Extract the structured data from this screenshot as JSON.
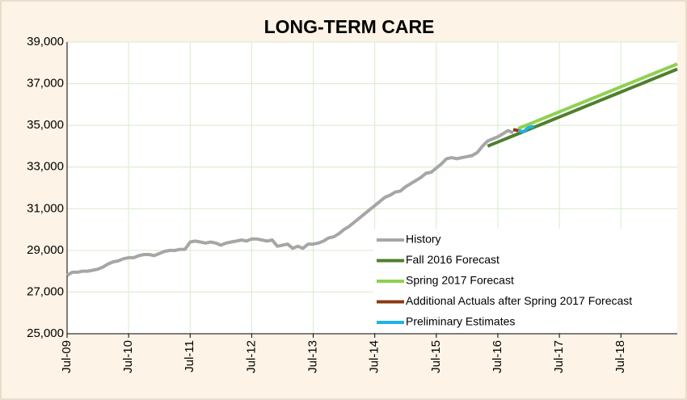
{
  "chart_data": {
    "type": "line",
    "title": "LONG-TERM CARE",
    "categories": [
      "Jul-09",
      null,
      null,
      null,
      null,
      null,
      null,
      null,
      null,
      null,
      null,
      null,
      "Jul-10",
      null,
      null,
      null,
      null,
      null,
      null,
      null,
      null,
      null,
      null,
      null,
      "Jul-11",
      null,
      null,
      null,
      null,
      null,
      null,
      null,
      null,
      null,
      null,
      null,
      "Jul-12",
      null,
      null,
      null,
      null,
      null,
      null,
      null,
      null,
      null,
      null,
      null,
      "Jul-13",
      null,
      null,
      null,
      null,
      null,
      null,
      null,
      null,
      null,
      null,
      null,
      "Jul-14",
      null,
      null,
      null,
      null,
      null,
      null,
      null,
      null,
      null,
      null,
      null,
      "Jul-15",
      null,
      null,
      null,
      null,
      null,
      null,
      null,
      null,
      null,
      null,
      null,
      "Jul-16",
      null,
      null,
      null,
      null,
      null,
      null,
      null,
      null,
      null,
      null,
      null,
      "Jul-17",
      null,
      null,
      null,
      null,
      null,
      null,
      null,
      null,
      null,
      null,
      null,
      "Jul-18",
      null,
      null,
      null,
      null,
      null,
      null,
      null,
      null,
      null,
      null,
      null
    ],
    "series": [
      {
        "name": "History",
        "color": "#a6a6a6",
        "values": [
          27800,
          27950,
          27950,
          28000,
          28000,
          28050,
          28100,
          28200,
          28350,
          28450,
          28500,
          28600,
          28650,
          28650,
          28750,
          28800,
          28800,
          28750,
          28850,
          28950,
          29000,
          29000,
          29050,
          29050,
          29400,
          29450,
          29400,
          29350,
          29400,
          29350,
          29250,
          29350,
          29400,
          29450,
          29500,
          29450,
          29550,
          29550,
          29500,
          29450,
          29500,
          29200,
          29250,
          29300,
          29100,
          29200,
          29100,
          29300,
          29300,
          29350,
          29450,
          29600,
          29650,
          29800,
          30000,
          30150,
          30350,
          30550,
          30750,
          30950,
          31150,
          31350,
          31550,
          31650,
          31800,
          31850,
          32050,
          32200,
          32350,
          32500,
          32700,
          32750,
          32950,
          33150,
          33400,
          33450,
          33400,
          33450,
          33500,
          33550,
          33700,
          34000,
          34250,
          34350,
          34450,
          34600,
          34750,
          34650,
          null,
          null,
          null,
          null,
          null,
          null,
          null,
          null,
          null,
          null,
          null,
          null,
          null,
          null,
          null,
          null,
          null,
          null,
          null,
          null,
          null,
          null,
          null,
          null,
          null,
          null,
          null,
          null,
          null,
          null,
          null,
          null
        ]
      },
      {
        "name": "Fall 2016 Forecast",
        "color": "#4f7f2f",
        "values": [
          null,
          null,
          null,
          null,
          null,
          null,
          null,
          null,
          null,
          null,
          null,
          null,
          null,
          null,
          null,
          null,
          null,
          null,
          null,
          null,
          null,
          null,
          null,
          null,
          null,
          null,
          null,
          null,
          null,
          null,
          null,
          null,
          null,
          null,
          null,
          null,
          null,
          null,
          null,
          null,
          null,
          null,
          null,
          null,
          null,
          null,
          null,
          null,
          null,
          null,
          null,
          null,
          null,
          null,
          null,
          null,
          null,
          null,
          null,
          null,
          null,
          null,
          null,
          null,
          null,
          null,
          null,
          null,
          null,
          null,
          null,
          null,
          null,
          null,
          null,
          null,
          null,
          null,
          null,
          null,
          null,
          null,
          34000,
          34100,
          34200,
          34300,
          34400,
          34500,
          34600,
          34700,
          34800,
          34900,
          35000,
          35100,
          35200,
          35300,
          35400,
          35500,
          35600,
          35700,
          35800,
          35900,
          36000,
          36100,
          36200,
          36300,
          36400,
          36500,
          36600,
          36700,
          36800,
          36900,
          37000,
          37100,
          37200,
          37300,
          37400,
          37500,
          37600,
          37700
        ]
      },
      {
        "name": "Spring 2017 Forecast",
        "color": "#8fd14f",
        "values": [
          null,
          null,
          null,
          null,
          null,
          null,
          null,
          null,
          null,
          null,
          null,
          null,
          null,
          null,
          null,
          null,
          null,
          null,
          null,
          null,
          null,
          null,
          null,
          null,
          null,
          null,
          null,
          null,
          null,
          null,
          null,
          null,
          null,
          null,
          null,
          null,
          null,
          null,
          null,
          null,
          null,
          null,
          null,
          null,
          null,
          null,
          null,
          null,
          null,
          null,
          null,
          null,
          null,
          null,
          null,
          null,
          null,
          null,
          null,
          null,
          null,
          null,
          null,
          null,
          null,
          null,
          null,
          null,
          null,
          null,
          null,
          null,
          null,
          null,
          null,
          null,
          null,
          null,
          null,
          null,
          null,
          null,
          null,
          null,
          null,
          null,
          null,
          null,
          34850,
          34950,
          35050,
          35150,
          35250,
          35350,
          35450,
          35550,
          35650,
          35750,
          35850,
          35950,
          36050,
          36150,
          36250,
          36350,
          36450,
          36550,
          36650,
          36750,
          36850,
          36950,
          37050,
          37150,
          37250,
          37350,
          37450,
          37550,
          37650,
          37750,
          37850,
          37950
        ]
      },
      {
        "name": "Additional Actuals after Spring 2017 Forecast",
        "color": "#8b3a0f",
        "values": [
          null,
          null,
          null,
          null,
          null,
          null,
          null,
          null,
          null,
          null,
          null,
          null,
          null,
          null,
          null,
          null,
          null,
          null,
          null,
          null,
          null,
          null,
          null,
          null,
          null,
          null,
          null,
          null,
          null,
          null,
          null,
          null,
          null,
          null,
          null,
          null,
          null,
          null,
          null,
          null,
          null,
          null,
          null,
          null,
          null,
          null,
          null,
          null,
          null,
          null,
          null,
          null,
          null,
          null,
          null,
          null,
          null,
          null,
          null,
          null,
          null,
          null,
          null,
          null,
          null,
          null,
          null,
          null,
          null,
          null,
          null,
          null,
          null,
          null,
          null,
          null,
          null,
          null,
          null,
          null,
          null,
          null,
          null,
          null,
          null,
          null,
          null,
          34800,
          34750,
          null,
          null,
          null,
          null,
          null,
          null,
          null,
          null,
          null,
          null,
          null,
          null,
          null,
          null,
          null,
          null,
          null,
          null,
          null,
          null,
          null,
          null,
          null,
          null,
          null,
          null,
          null,
          null,
          null,
          null,
          null
        ]
      },
      {
        "name": "Preliminary Estimates",
        "color": "#22b0e8",
        "values": [
          null,
          null,
          null,
          null,
          null,
          null,
          null,
          null,
          null,
          null,
          null,
          null,
          null,
          null,
          null,
          null,
          null,
          null,
          null,
          null,
          null,
          null,
          null,
          null,
          null,
          null,
          null,
          null,
          null,
          null,
          null,
          null,
          null,
          null,
          null,
          null,
          null,
          null,
          null,
          null,
          null,
          null,
          null,
          null,
          null,
          null,
          null,
          null,
          null,
          null,
          null,
          null,
          null,
          null,
          null,
          null,
          null,
          null,
          null,
          null,
          null,
          null,
          null,
          null,
          null,
          null,
          null,
          null,
          null,
          null,
          null,
          null,
          null,
          null,
          null,
          null,
          null,
          null,
          null,
          null,
          null,
          null,
          null,
          null,
          null,
          null,
          null,
          null,
          34750,
          34700,
          34900,
          34950,
          null,
          null,
          null,
          null,
          null,
          null,
          null,
          null,
          null,
          null,
          null,
          null,
          null,
          null,
          null,
          null,
          null,
          null,
          null,
          null,
          null,
          null,
          null,
          null,
          null,
          null,
          null,
          null
        ]
      }
    ],
    "ylim": [
      25000,
      39000
    ],
    "yticks": [
      {
        "value": 25000,
        "label": "25,000"
      },
      {
        "value": 27000,
        "label": "27,000"
      },
      {
        "value": 29000,
        "label": "29,000"
      },
      {
        "value": 31000,
        "label": "31,000"
      },
      {
        "value": 33000,
        "label": "33,000"
      },
      {
        "value": 35000,
        "label": "35,000"
      },
      {
        "value": 37000,
        "label": "37,000"
      },
      {
        "value": 39000,
        "label": "39,000"
      }
    ],
    "grid": true,
    "legend": "lower right"
  }
}
